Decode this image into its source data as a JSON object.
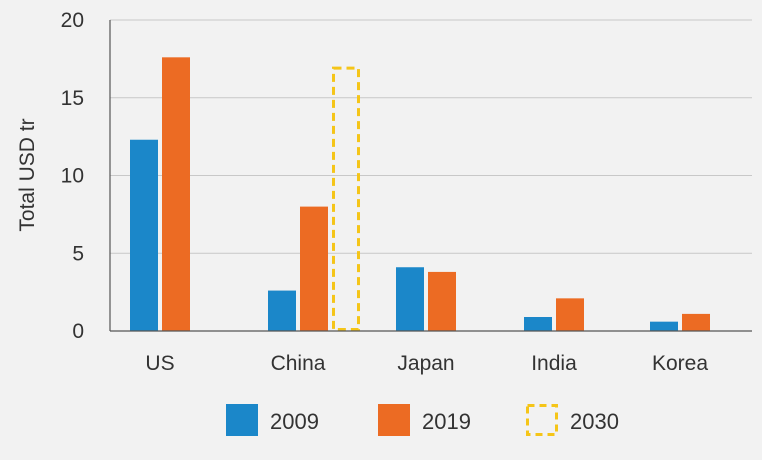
{
  "chart_data": {
    "type": "bar",
    "categories": [
      "US",
      "China",
      "Japan",
      "India",
      "Korea"
    ],
    "series": [
      {
        "name": "2009",
        "color": "#1b87c9",
        "style": "solid",
        "values": [
          12.3,
          2.6,
          4.1,
          0.9,
          0.6
        ]
      },
      {
        "name": "2019",
        "color": "#ec6b23",
        "style": "solid",
        "values": [
          17.6,
          8.0,
          3.8,
          2.1,
          1.1
        ]
      },
      {
        "name": "2030",
        "color": "#f5c518",
        "style": "dashed",
        "values": [
          null,
          17.0,
          null,
          null,
          null
        ]
      }
    ],
    "ylabel": "Total USD tr",
    "xlabel": "",
    "ylim": [
      0,
      20
    ],
    "yticks": [
      0,
      5,
      10,
      15,
      20
    ],
    "grid": true,
    "legend_position": "bottom-center"
  }
}
